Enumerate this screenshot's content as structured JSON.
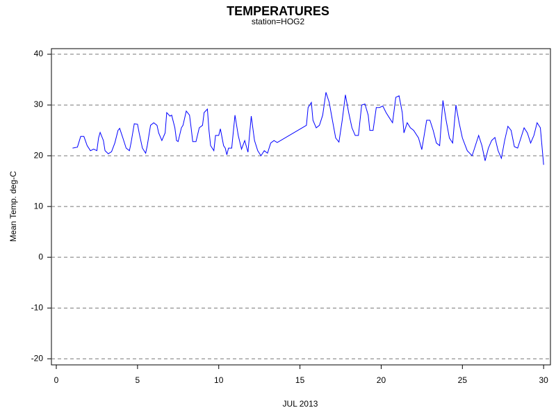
{
  "chart_data": {
    "type": "line",
    "title": "TEMPERATURES",
    "subtitle": "station=HOG2",
    "x_label": "JUL 2013",
    "y_label": "Mean Temp. deg-C",
    "xlim": [
      -0.3,
      30.42
    ],
    "ylim": [
      -21.2,
      41.1
    ],
    "xticks": [
      0,
      5,
      10,
      15,
      20,
      25,
      30
    ],
    "yticks": [
      -20,
      -10,
      0,
      10,
      20,
      30,
      40
    ],
    "grid": true,
    "series": [
      {
        "color": "#0000ff",
        "x": [
          1.0,
          1.3,
          1.5,
          1.7,
          1.9,
          2.1,
          2.3,
          2.5,
          2.6,
          2.7,
          2.9,
          3.0,
          3.2,
          3.4,
          3.6,
          3.8,
          3.9,
          4.1,
          4.3,
          4.5,
          4.6,
          4.8,
          5.0,
          5.1,
          5.3,
          5.5,
          5.6,
          5.8,
          6.0,
          6.2,
          6.3,
          6.5,
          6.7,
          6.8,
          7.0,
          7.1,
          7.3,
          7.4,
          7.5,
          7.7,
          7.8,
          8.0,
          8.2,
          8.3,
          8.4,
          8.6,
          8.8,
          9.0,
          9.1,
          9.3,
          9.4,
          9.5,
          9.7,
          9.8,
          10.0,
          10.1,
          10.3,
          10.4,
          10.5,
          10.6,
          10.8,
          11.0,
          11.2,
          11.4,
          11.6,
          11.8,
          12.0,
          12.2,
          12.4,
          12.6,
          12.8,
          13.0,
          13.2,
          13.4,
          13.6,
          15.4,
          15.5,
          15.7,
          15.8,
          16.0,
          16.2,
          16.4,
          16.6,
          16.8,
          17.0,
          17.2,
          17.4,
          17.6,
          17.8,
          18.0,
          18.2,
          18.4,
          18.6,
          18.8,
          19.0,
          19.2,
          19.3,
          19.5,
          19.7,
          19.9,
          20.1,
          20.3,
          20.5,
          20.7,
          20.9,
          21.1,
          21.3,
          21.4,
          21.6,
          21.8,
          22.0,
          22.3,
          22.5,
          22.8,
          23.0,
          23.2,
          23.4,
          23.6,
          23.8,
          24.0,
          24.2,
          24.4,
          24.6,
          24.8,
          25.0,
          25.3,
          25.6,
          25.8,
          26.0,
          26.2,
          26.4,
          26.6,
          26.8,
          27.0,
          27.2,
          27.4,
          27.6,
          27.8,
          28.0,
          28.2,
          28.4,
          28.6,
          28.8,
          29.0,
          29.2,
          29.4,
          29.6,
          29.8,
          30.0
        ],
        "values": [
          21.5,
          21.7,
          23.8,
          23.8,
          22.0,
          21.0,
          21.3,
          21.0,
          23.5,
          24.6,
          23.0,
          21.0,
          20.4,
          20.8,
          22.5,
          25.0,
          25.4,
          23.5,
          21.5,
          21.0,
          22.5,
          26.3,
          26.2,
          24.5,
          21.5,
          20.5,
          22.0,
          26.0,
          26.5,
          26.0,
          24.5,
          23.0,
          24.5,
          28.5,
          27.8,
          28.0,
          25.5,
          23.0,
          22.8,
          25.5,
          26.0,
          28.8,
          28.0,
          25.5,
          22.8,
          22.8,
          25.5,
          26.0,
          28.5,
          29.2,
          25.0,
          22.0,
          21.0,
          24.0,
          24.0,
          25.3,
          22.0,
          21.5,
          20.2,
          21.5,
          21.5,
          28.0,
          24.0,
          21.3,
          23.0,
          20.7,
          27.8,
          23.0,
          21.0,
          20.0,
          21.0,
          20.5,
          22.5,
          23.0,
          22.6,
          26.0,
          29.5,
          30.5,
          27.0,
          25.5,
          26.0,
          28.0,
          32.5,
          30.5,
          27.0,
          23.5,
          22.7,
          27.0,
          32.0,
          28.5,
          25.5,
          24.0,
          24.0,
          30.0,
          30.2,
          28.0,
          25.0,
          25.0,
          29.5,
          29.5,
          29.8,
          28.5,
          27.5,
          26.5,
          31.5,
          31.8,
          28.5,
          24.5,
          26.5,
          25.5,
          25.0,
          23.5,
          21.2,
          27.0,
          27.0,
          25.0,
          22.5,
          22.0,
          30.9,
          27.0,
          23.5,
          22.5,
          30.0,
          26.5,
          23.5,
          21.0,
          20.0,
          22.0,
          24.0,
          22.0,
          19.0,
          21.5,
          23.0,
          23.6,
          21.0,
          19.5,
          23.0,
          25.8,
          25.0,
          21.8,
          21.5,
          23.5,
          25.5,
          24.5,
          22.5,
          24.0,
          26.5,
          25.5,
          18.2
        ]
      }
    ]
  }
}
